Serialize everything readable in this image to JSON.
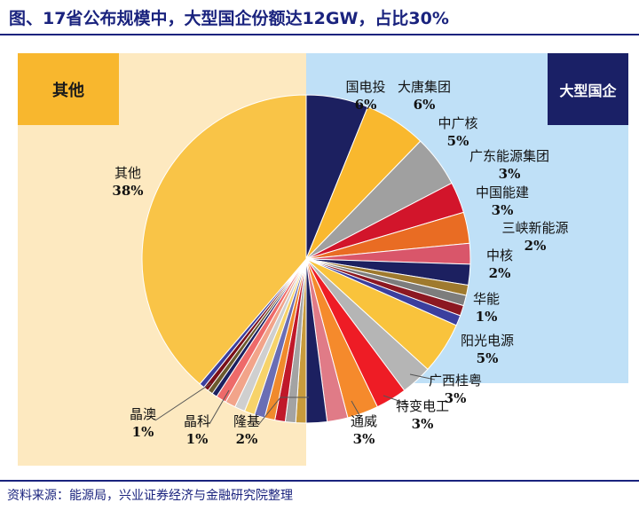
{
  "header": {
    "title": "图、17省公布规模中，大型国企份额达12GW，占比30%"
  },
  "footer": {
    "source": "资料来源：能源局，兴业证券经济与金融研究院整理"
  },
  "boxes": {
    "other": "其他",
    "soe": "大型国企"
  },
  "colors": {
    "title": "#1a237e",
    "soe_box": "#1a2066",
    "other_box": "#f8b72e",
    "soe_panel": "#bfe0f7",
    "other_panel": "#fde9c0"
  },
  "chart_data": {
    "type": "pie",
    "title": "",
    "start_angle_deg": 0,
    "direction": "clockwise",
    "slices": [
      {
        "label": "国电投",
        "pct": "6%",
        "value": 6,
        "color": "#1c2060"
      },
      {
        "label": "大唐集团",
        "pct": "6%",
        "value": 6,
        "color": "#f9b82e"
      },
      {
        "label": "中广核",
        "pct": "5%",
        "value": 5,
        "color": "#a0a0a0"
      },
      {
        "label": "广东能源集团",
        "pct": "3%",
        "value": 3,
        "color": "#d2152b"
      },
      {
        "label": "中国能建",
        "pct": "3%",
        "value": 3,
        "color": "#e96c23"
      },
      {
        "label": "三峡新能源",
        "pct": "2%",
        "value": 2,
        "color": "#d9566a"
      },
      {
        "label": "中核",
        "pct": "2%",
        "value": 2,
        "color": "#1c2060"
      },
      {
        "label": "",
        "pct": "",
        "value": 1,
        "color": "#9f7a2e"
      },
      {
        "label": "",
        "pct": "",
        "value": 1,
        "color": "#7d7d7d"
      },
      {
        "label": "",
        "pct": "",
        "value": 1,
        "color": "#8c1822"
      },
      {
        "label": "华能",
        "pct": "1%",
        "value": 1,
        "color": "#3b3f9e"
      },
      {
        "label": "阳光电源",
        "pct": "5%",
        "value": 5,
        "color": "#f9c33c"
      },
      {
        "label": "广西桂粤",
        "pct": "3%",
        "value": 3,
        "color": "#b5b5b5"
      },
      {
        "label": "特变电工",
        "pct": "3%",
        "value": 3,
        "color": "#ee1c25"
      },
      {
        "label": "通威",
        "pct": "3%",
        "value": 3,
        "color": "#f58a2c"
      },
      {
        "label": "",
        "pct": "",
        "value": 2,
        "color": "#e07b87"
      },
      {
        "label": "隆基",
        "pct": "2%",
        "value": 2,
        "color": "#1c2060"
      },
      {
        "label": "",
        "pct": "",
        "value": 1,
        "color": "#c89b3c"
      },
      {
        "label": "",
        "pct": "",
        "value": 1,
        "color": "#a3a3a3"
      },
      {
        "label": "",
        "pct": "",
        "value": 1,
        "color": "#c0182a"
      },
      {
        "label": "",
        "pct": "",
        "value": 1,
        "color": "#f08a2c"
      },
      {
        "label": "",
        "pct": "",
        "value": 1,
        "color": "#6a6eb5"
      },
      {
        "label": "",
        "pct": "",
        "value": 1,
        "color": "#f7d36a"
      },
      {
        "label": "",
        "pct": "",
        "value": 1,
        "color": "#cfcfcf"
      },
      {
        "label": "晶科",
        "pct": "1%",
        "value": 1,
        "color": "#f2a48a"
      },
      {
        "label": "",
        "pct": "",
        "value": 1,
        "color": "#ee6a6a"
      },
      {
        "label": "",
        "pct": "",
        "value": 0.5,
        "color": "#1c2060"
      },
      {
        "label": "",
        "pct": "",
        "value": 0.5,
        "color": "#6b5a2e"
      },
      {
        "label": "",
        "pct": "",
        "value": 0.5,
        "color": "#7a0f1a"
      },
      {
        "label": "晶澳",
        "pct": "1%",
        "value": 0.5,
        "color": "#3b3f9e"
      },
      {
        "label": "其他",
        "pct": "38%",
        "value": 38,
        "color": "#f9c447"
      }
    ]
  }
}
